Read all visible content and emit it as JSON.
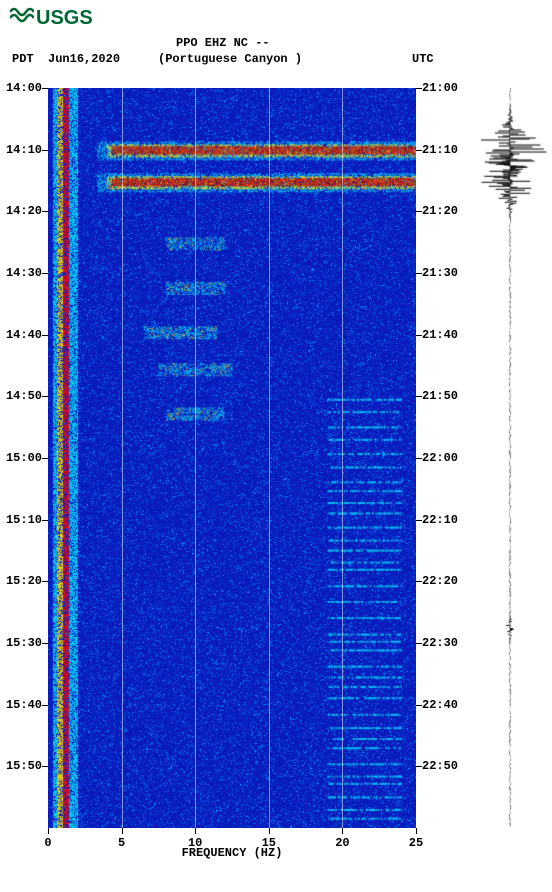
{
  "logo": {
    "text": "USGS",
    "color": "#006633"
  },
  "header": {
    "station_line": "PPO EHZ NC --",
    "pdt_label": "PDT",
    "date": "Jun16,2020",
    "location": "(Portuguese Canyon )",
    "utc_label": "UTC"
  },
  "axes": {
    "xlabel": "FREQUENCY (HZ)",
    "x_ticks": [
      0,
      5,
      10,
      15,
      20,
      25
    ],
    "xlim": [
      0,
      25
    ],
    "left_time_labels": [
      "14:00",
      "14:10",
      "14:20",
      "14:30",
      "14:40",
      "14:50",
      "15:00",
      "15:10",
      "15:20",
      "15:30",
      "15:40",
      "15:50"
    ],
    "right_time_labels": [
      "21:00",
      "21:10",
      "21:20",
      "21:30",
      "21:40",
      "21:50",
      "22:00",
      "22:10",
      "22:20",
      "22:30",
      "22:40",
      "22:50"
    ],
    "time_rows": 12,
    "plot_bg": "#0a1bbb"
  },
  "spectrogram": {
    "base_color": "#0a1bbb",
    "low_band": {
      "freq_range": [
        0.2,
        1.5
      ],
      "colors": [
        "#ff0000",
        "#ffcc00",
        "#00ffcc"
      ]
    },
    "events": [
      {
        "time_frac": 0.083,
        "freq_start": 4,
        "freq_end": 25,
        "intensity": 1.0
      },
      {
        "time_frac": 0.126,
        "freq_start": 4,
        "freq_end": 25,
        "intensity": 1.0
      }
    ],
    "faint_bursts": [
      {
        "time_frac": 0.21,
        "freq_center": 10,
        "width": 4
      },
      {
        "time_frac": 0.27,
        "freq_center": 10,
        "width": 4
      },
      {
        "time_frac": 0.33,
        "freq_center": 9,
        "width": 5
      },
      {
        "time_frac": 0.38,
        "freq_center": 10,
        "width": 5
      },
      {
        "time_frac": 0.44,
        "freq_center": 10,
        "width": 4
      }
    ],
    "high_freq_bands_start_frac": 0.42,
    "high_freq_band_freq": [
      19,
      24
    ],
    "palette": {
      "cold": "#0a1bbb",
      "cool": "#0066ff",
      "cyan": "#00e5ff",
      "warm": "#ffe100",
      "hot": "#ff0000",
      "darkred": "#8b0000"
    }
  },
  "waveform": {
    "color": "#000000",
    "baseline_x": 0.5,
    "events": [
      {
        "time_frac": 0.083,
        "amplitude": 1.0,
        "duration": 0.02
      },
      {
        "time_frac": 0.126,
        "amplitude": 0.85,
        "duration": 0.018
      },
      {
        "time_frac": 0.73,
        "amplitude": 0.12,
        "duration": 0.008
      }
    ]
  },
  "fonts": {
    "tick_fontsize": 12,
    "label_fontsize": 12,
    "title_fontsize": 12
  }
}
